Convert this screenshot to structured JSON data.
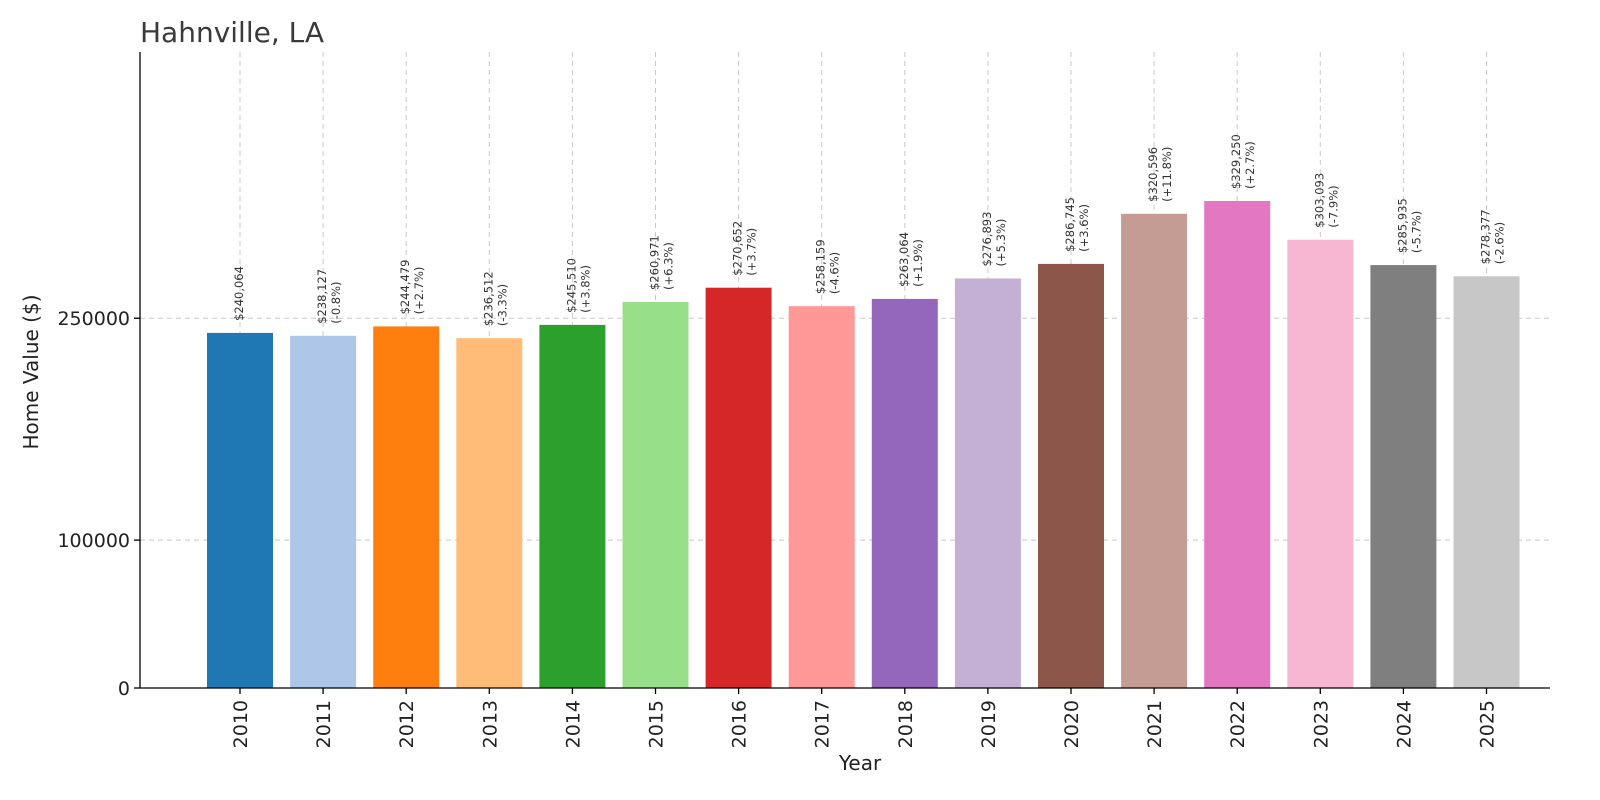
{
  "chart_data": {
    "type": "bar",
    "title": "Hahnville, LA",
    "xlabel": "Year",
    "ylabel": "Home Value ($)",
    "ylim": [
      0,
      430000
    ],
    "yticks": [
      0,
      100000,
      250000
    ],
    "grid": true,
    "categories": [
      "2010",
      "2011",
      "2012",
      "2013",
      "2014",
      "2015",
      "2016",
      "2017",
      "2018",
      "2019",
      "2020",
      "2021",
      "2022",
      "2023",
      "2024",
      "2025"
    ],
    "values": [
      240064,
      238127,
      244479,
      236512,
      245510,
      260971,
      270652,
      258159,
      263064,
      276893,
      286745,
      320596,
      329250,
      303093,
      285935,
      278377
    ],
    "value_labels": [
      "$240,064",
      "$238,127",
      "$244,479",
      "$236,512",
      "$245,510",
      "$260,971",
      "$270,652",
      "$258,159",
      "$263,064",
      "$276,893",
      "$286,745",
      "$320,596",
      "$329,250",
      "$303,093",
      "$285,935",
      "$278,377"
    ],
    "change_labels": [
      "",
      "(-0.8%)",
      "(+2.7%)",
      "(-3.3%)",
      "(+3.8%)",
      "(+6.3%)",
      "(+3.7%)",
      "(-4.6%)",
      "(+1.9%)",
      "(+5.3%)",
      "(+3.6%)",
      "(+11.8%)",
      "(+2.7%)",
      "(-7.9%)",
      "(-5.7%)",
      "(-2.6%)"
    ],
    "colors": [
      "#1f77b4",
      "#aec7e8",
      "#ff7f0e",
      "#ffbb78",
      "#2ca02c",
      "#98df8a",
      "#d62728",
      "#ff9896",
      "#9467bd",
      "#c5b0d5",
      "#8c564b",
      "#c49c94",
      "#e377c2",
      "#f7b6d2",
      "#7f7f7f",
      "#c7c7c7"
    ]
  }
}
